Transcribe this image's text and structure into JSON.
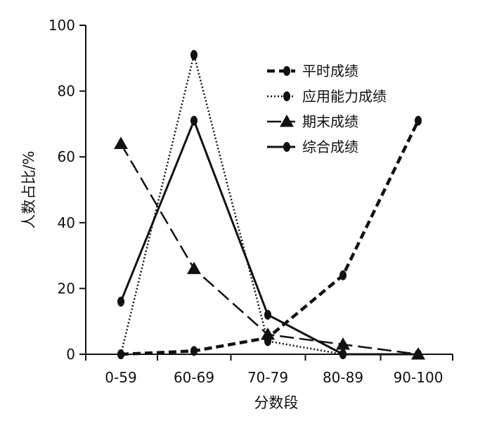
{
  "chart_data": {
    "type": "line",
    "title": "",
    "xlabel": "分数段",
    "ylabel": "人数占比/%",
    "categories": [
      "0-59",
      "60-69",
      "70-79",
      "80-89",
      "90-100"
    ],
    "ylim": [
      0,
      100
    ],
    "yticks": [
      0,
      20,
      40,
      60,
      80,
      100
    ],
    "grid": false,
    "legend_position": "top-right",
    "series": [
      {
        "name": "平时成绩",
        "values": [
          0,
          1,
          5,
          24,
          71
        ],
        "line_style": "bold-dashed",
        "marker": "circle",
        "color": "#111111"
      },
      {
        "name": "应用能力成绩",
        "values": [
          0,
          91,
          4,
          0,
          0
        ],
        "line_style": "dotted",
        "marker": "circle",
        "color": "#111111"
      },
      {
        "name": "期末成绩",
        "values": [
          64,
          26,
          6,
          3,
          0
        ],
        "line_style": "long-dashed",
        "marker": "triangle",
        "color": "#111111"
      },
      {
        "name": "综合成绩",
        "values": [
          16,
          71,
          12,
          0,
          0
        ],
        "line_style": "solid",
        "marker": "circle",
        "color": "#111111"
      }
    ]
  }
}
